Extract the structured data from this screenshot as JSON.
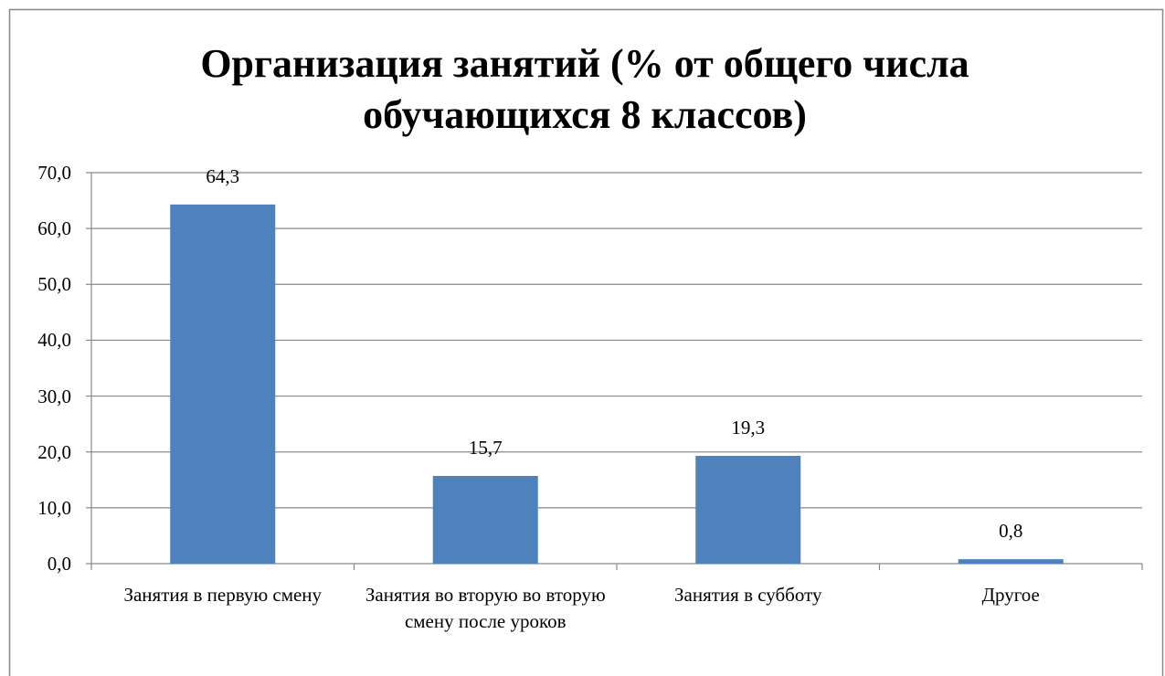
{
  "chart_data": {
    "type": "bar",
    "title": "Организация занятий (% от общего числа обучающихся 8 классов)",
    "categories": [
      "Занятия в первую смену",
      "Занятия во вторую во вторую смену после уроков",
      "Занятия в субботу",
      "Другое"
    ],
    "values": [
      64.3,
      15.7,
      19.3,
      0.8
    ],
    "value_labels": [
      "64,3",
      "15,7",
      "19,3",
      "0,8"
    ],
    "color": "#4f81bd",
    "ylim": [
      0,
      70
    ],
    "yticks": [
      {
        "value": 0,
        "label": "0,0"
      },
      {
        "value": 10,
        "label": "10,0"
      },
      {
        "value": 20,
        "label": "20,0"
      },
      {
        "value": 30,
        "label": "30,0"
      },
      {
        "value": 40,
        "label": "40,0"
      },
      {
        "value": 50,
        "label": "50,0"
      },
      {
        "value": 60,
        "label": "60,0"
      },
      {
        "value": 70,
        "label": "70,0"
      }
    ],
    "grid": true
  }
}
